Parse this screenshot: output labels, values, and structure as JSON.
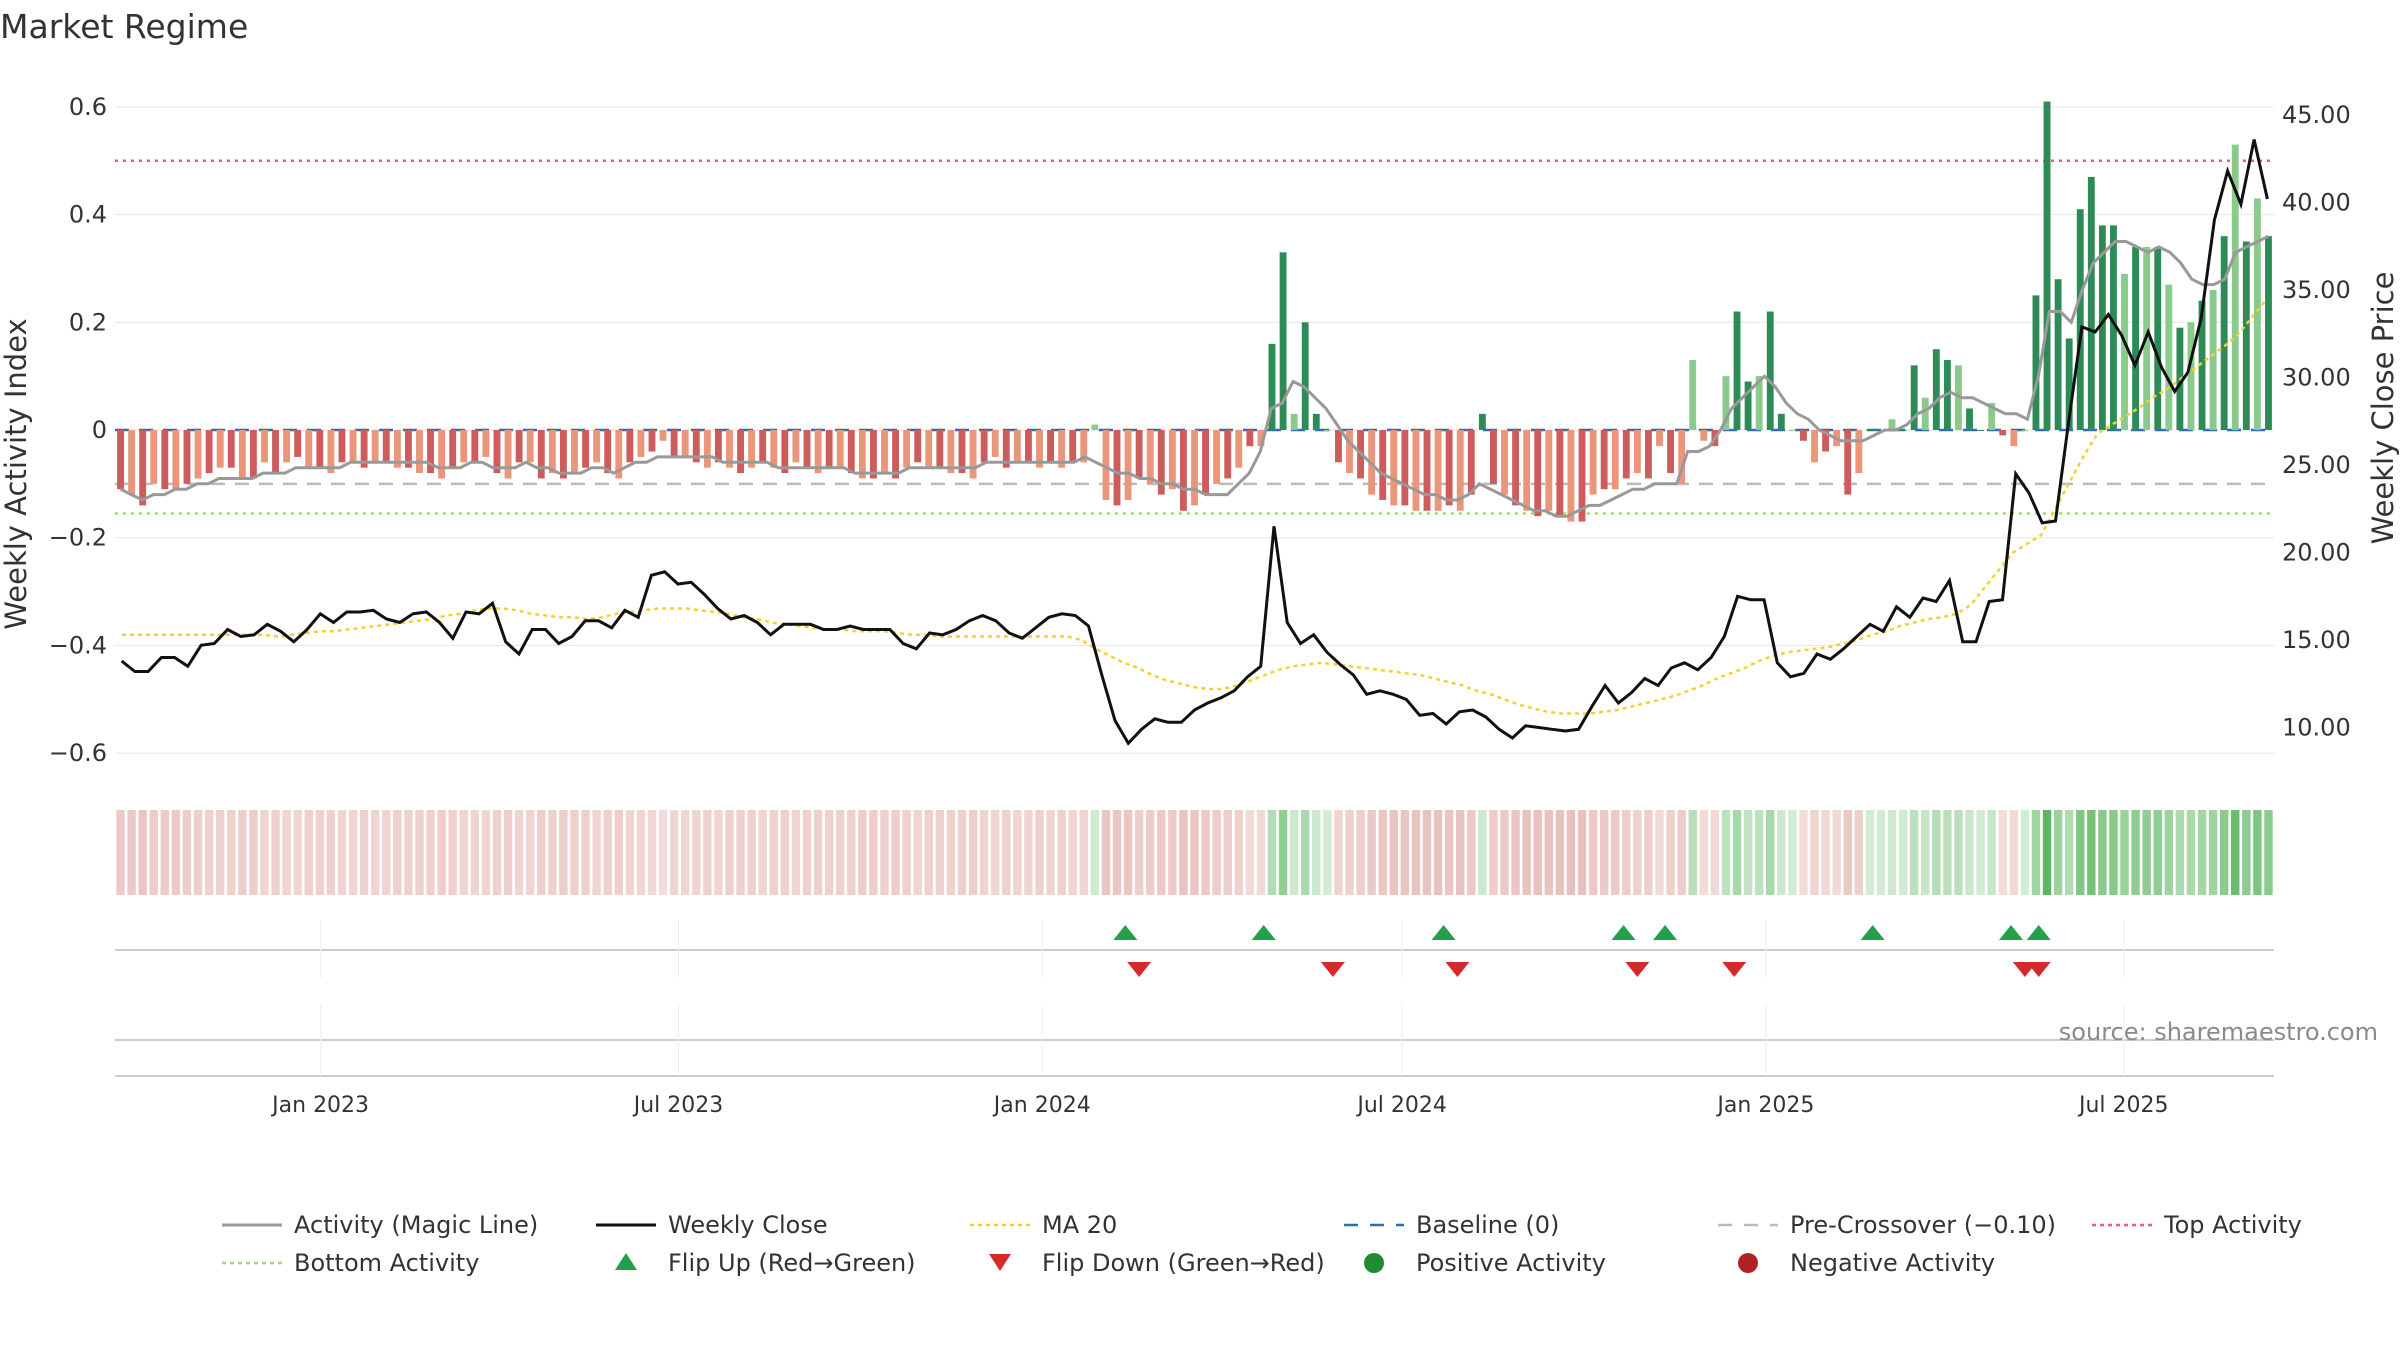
{
  "title": "Market Regime",
  "source_text": "source: sharemaestro.com",
  "colors": {
    "activity_line": "#999999",
    "weekly_close": "#111111",
    "ma20": "#f2d22e",
    "baseline": "#2f6fb0",
    "pre_crossover": "#bbbbbb",
    "top_activity": "#e0607a",
    "bottom_activity": "#9fdb6e",
    "pos_strong": "#2e8b57",
    "pos_weak": "#8cc98c",
    "neg_strong": "#cd5c5c",
    "neg_weak": "#e9967a",
    "flip_up": "#22a04b",
    "flip_down": "#d62a2a",
    "positive_dot": "#1e8c2f",
    "negative_dot": "#b22222"
  },
  "legend": [
    {
      "label": "Activity (Magic Line)",
      "style": "line",
      "color": "#999999"
    },
    {
      "label": "Weekly Close",
      "style": "line",
      "color": "#111111"
    },
    {
      "label": "MA 20",
      "style": "dotted",
      "color": "#f2d22e"
    },
    {
      "label": "Baseline (0)",
      "style": "dashed",
      "color": "#2f6fb0"
    },
    {
      "label": "Pre-Crossover (−0.10)",
      "style": "dashed",
      "color": "#bbbbbb"
    },
    {
      "label": "Top Activity",
      "style": "dotted",
      "color": "#e0607a"
    },
    {
      "label": "Bottom Activity",
      "style": "dotted",
      "color": "#9fdb6e"
    },
    {
      "label": "Flip Up (Red→Green)",
      "style": "triangle-up",
      "color": "#22a04b"
    },
    {
      "label": "Flip Down (Green→Red)",
      "style": "triangle-down",
      "color": "#d62a2a"
    },
    {
      "label": "Positive Activity",
      "style": "dot",
      "color": "#1e8c2f"
    },
    {
      "label": "Negative Activity",
      "style": "dot",
      "color": "#b22222"
    }
  ],
  "chart_data": {
    "type": "bar+line",
    "x_axis": {
      "type": "date",
      "start": "2022-09-19",
      "end": "2025-09-15",
      "tick_labels": [
        "Jan 2023",
        "Jul 2023",
        "Jan 2024",
        "Jul 2024",
        "Jan 2025",
        "Jul 2025"
      ],
      "tick_dates": [
        "2023-01-01",
        "2023-07-01",
        "2024-01-01",
        "2024-07-01",
        "2025-01-01",
        "2025-07-01"
      ]
    },
    "y_left": {
      "label": "Weekly Activity Index",
      "range": [
        -0.65,
        0.65
      ],
      "ticks": [
        0.6,
        0.4,
        0.2,
        0,
        -0.2,
        -0.4,
        -0.6
      ],
      "tick_labels": [
        "0.6",
        "0.4",
        "0.2",
        "0",
        "−0.2",
        "−0.4",
        "−0.6"
      ]
    },
    "y_right": {
      "label": "Weekly Close Price",
      "range": [
        7.0,
        47.0
      ],
      "ticks": [
        45,
        40,
        35,
        30,
        25,
        20,
        15,
        10
      ],
      "tick_labels": [
        "45.00",
        "40.00",
        "35.00",
        "30.00",
        "25.00",
        "20.00",
        "15.00",
        "10.00"
      ]
    },
    "reference_lines": {
      "baseline": 0,
      "pre_crossover": -0.1,
      "top_activity": 0.5,
      "bottom_activity": -0.155
    },
    "weekly_activity": [
      -0.11,
      -0.12,
      -0.14,
      -0.1,
      -0.11,
      -0.11,
      -0.1,
      -0.09,
      -0.08,
      -0.07,
      -0.07,
      -0.09,
      -0.09,
      -0.06,
      -0.08,
      -0.06,
      -0.05,
      -0.07,
      -0.07,
      -0.08,
      -0.06,
      -0.06,
      -0.07,
      -0.06,
      -0.06,
      -0.07,
      -0.07,
      -0.08,
      -0.08,
      -0.09,
      -0.07,
      -0.06,
      -0.06,
      -0.05,
      -0.08,
      -0.09,
      -0.06,
      -0.06,
      -0.09,
      -0.08,
      -0.09,
      -0.08,
      -0.07,
      -0.06,
      -0.08,
      -0.09,
      -0.06,
      -0.05,
      -0.04,
      -0.02,
      -0.05,
      -0.05,
      -0.06,
      -0.07,
      -0.06,
      -0.07,
      -0.08,
      -0.07,
      -0.06,
      -0.07,
      -0.08,
      -0.06,
      -0.07,
      -0.08,
      -0.07,
      -0.07,
      -0.08,
      -0.09,
      -0.09,
      -0.08,
      -0.09,
      -0.07,
      -0.06,
      -0.07,
      -0.07,
      -0.08,
      -0.08,
      -0.09,
      -0.06,
      -0.05,
      -0.07,
      -0.06,
      -0.06,
      -0.07,
      -0.06,
      -0.07,
      -0.06,
      -0.06,
      0.01,
      -0.13,
      -0.14,
      -0.13,
      -0.09,
      -0.1,
      -0.12,
      -0.11,
      -0.15,
      -0.14,
      -0.12,
      -0.1,
      -0.09,
      -0.07,
      -0.03,
      -0.03,
      0.16,
      0.33,
      0.03,
      0.2,
      0.03,
      0.0,
      -0.06,
      -0.08,
      -0.09,
      -0.12,
      -0.13,
      -0.14,
      -0.14,
      -0.15,
      -0.15,
      -0.15,
      -0.14,
      -0.15,
      -0.12,
      0.03,
      -0.1,
      -0.12,
      -0.14,
      -0.15,
      -0.16,
      -0.15,
      -0.16,
      -0.17,
      -0.17,
      -0.12,
      -0.11,
      -0.11,
      -0.09,
      -0.08,
      -0.09,
      -0.03,
      -0.08,
      -0.1,
      0.13,
      -0.02,
      -0.03,
      0.1,
      0.22,
      0.09,
      0.1,
      0.22,
      0.03,
      0.0,
      -0.02,
      -0.06,
      -0.04,
      -0.03,
      -0.12,
      -0.08,
      0.0,
      0.0,
      0.02,
      0.0,
      0.12,
      0.06,
      0.15,
      0.13,
      0.12,
      0.04,
      0.0,
      0.05,
      -0.01,
      -0.03,
      0.0,
      0.25,
      0.61,
      0.28,
      0.17,
      0.41,
      0.47,
      0.38,
      0.38,
      0.29,
      0.34,
      0.34,
      0.34,
      0.27,
      0.19,
      0.2,
      0.24,
      0.26,
      0.36,
      0.53,
      0.35,
      0.43,
      0.36
    ],
    "activity_magic_line": [
      -0.11,
      -0.12,
      -0.13,
      -0.12,
      -0.12,
      -0.11,
      -0.11,
      -0.1,
      -0.1,
      -0.09,
      -0.09,
      -0.09,
      -0.09,
      -0.08,
      -0.08,
      -0.08,
      -0.07,
      -0.07,
      -0.07,
      -0.07,
      -0.07,
      -0.06,
      -0.06,
      -0.06,
      -0.06,
      -0.06,
      -0.06,
      -0.06,
      -0.06,
      -0.07,
      -0.07,
      -0.07,
      -0.06,
      -0.06,
      -0.07,
      -0.07,
      -0.07,
      -0.06,
      -0.07,
      -0.07,
      -0.08,
      -0.08,
      -0.08,
      -0.07,
      -0.07,
      -0.08,
      -0.07,
      -0.06,
      -0.06,
      -0.05,
      -0.05,
      -0.05,
      -0.05,
      -0.05,
      -0.05,
      -0.06,
      -0.06,
      -0.06,
      -0.06,
      -0.06,
      -0.07,
      -0.07,
      -0.07,
      -0.07,
      -0.07,
      -0.07,
      -0.07,
      -0.08,
      -0.08,
      -0.08,
      -0.08,
      -0.08,
      -0.07,
      -0.07,
      -0.07,
      -0.07,
      -0.07,
      -0.07,
      -0.07,
      -0.06,
      -0.06,
      -0.06,
      -0.06,
      -0.06,
      -0.06,
      -0.06,
      -0.06,
      -0.06,
      -0.05,
      -0.06,
      -0.07,
      -0.08,
      -0.08,
      -0.09,
      -0.09,
      -0.1,
      -0.1,
      -0.11,
      -0.11,
      -0.12,
      -0.12,
      -0.12,
      -0.1,
      -0.08,
      -0.04,
      0.04,
      0.05,
      0.09,
      0.08,
      0.06,
      0.04,
      0.01,
      -0.02,
      -0.04,
      -0.06,
      -0.08,
      -0.09,
      -0.1,
      -0.11,
      -0.12,
      -0.12,
      -0.13,
      -0.13,
      -0.12,
      -0.1,
      -0.11,
      -0.12,
      -0.13,
      -0.14,
      -0.15,
      -0.15,
      -0.16,
      -0.16,
      -0.15,
      -0.14,
      -0.14,
      -0.13,
      -0.12,
      -0.11,
      -0.11,
      -0.1,
      -0.1,
      -0.1,
      -0.04,
      -0.04,
      -0.03,
      0.0,
      0.04,
      0.06,
      0.08,
      0.1,
      0.08,
      0.05,
      0.03,
      0.02,
      0.0,
      -0.01,
      -0.02,
      -0.02,
      -0.02,
      -0.01,
      0.0,
      0.0,
      0.01,
      0.03,
      0.04,
      0.06,
      0.07,
      0.06,
      0.06,
      0.05,
      0.04,
      0.03,
      0.03,
      0.02,
      0.1,
      0.22,
      0.22,
      0.2,
      0.26,
      0.31,
      0.33,
      0.35,
      0.35,
      0.34,
      0.33,
      0.34,
      0.33,
      0.31,
      0.28,
      0.27,
      0.27,
      0.28,
      0.33,
      0.34,
      0.35,
      0.36
    ],
    "weekly_close": [
      13.8,
      13.2,
      13.2,
      14.0,
      14.0,
      13.5,
      14.7,
      14.8,
      15.6,
      15.2,
      15.3,
      15.9,
      15.5,
      14.9,
      15.6,
      16.5,
      16.0,
      16.6,
      16.6,
      16.7,
      16.2,
      16.0,
      16.5,
      16.6,
      16.0,
      15.1,
      16.6,
      16.5,
      17.1,
      14.9,
      14.2,
      15.6,
      15.6,
      14.8,
      15.2,
      16.1,
      16.1,
      15.7,
      16.7,
      16.3,
      18.7,
      18.9,
      18.2,
      18.3,
      17.6,
      16.8,
      16.2,
      16.4,
      16.0,
      15.3,
      15.9,
      15.9,
      15.9,
      15.6,
      15.6,
      15.8,
      15.6,
      15.6,
      15.6,
      14.8,
      14.5,
      15.4,
      15.3,
      15.6,
      16.1,
      16.4,
      16.1,
      15.4,
      15.1,
      15.7,
      16.3,
      16.5,
      16.4,
      15.8,
      13.0,
      10.4,
      9.1,
      9.9,
      10.5,
      10.3,
      10.3,
      11.0,
      11.4,
      11.7,
      12.1,
      12.9,
      13.5,
      21.5,
      16.0,
      14.8,
      15.3,
      14.3,
      13.6,
      13.0,
      11.9,
      12.1,
      11.9,
      11.6,
      10.7,
      10.8,
      10.2,
      10.9,
      11.0,
      10.6,
      9.9,
      9.4,
      10.1,
      10.0,
      9.9,
      9.8,
      9.9,
      11.2,
      12.4,
      11.4,
      12.0,
      12.8,
      12.4,
      13.4,
      13.7,
      13.3,
      14.0,
      15.2,
      17.5,
      17.3,
      17.3,
      13.7,
      12.9,
      13.1,
      14.2,
      13.9,
      14.5,
      15.2,
      15.9,
      15.5,
      16.9,
      16.3,
      17.4,
      17.2,
      18.4,
      14.9,
      14.9,
      17.2,
      17.3,
      24.5,
      23.4,
      21.7,
      21.8,
      27.5,
      32.9,
      32.6,
      33.6,
      32.4,
      30.7,
      32.6,
      30.6,
      29.2,
      30.3,
      33.4,
      39.0,
      41.8,
      39.9,
      43.6,
      40.2
    ],
    "ma20": [
      15.3,
      15.3,
      15.3,
      15.3,
      15.3,
      15.3,
      15.3,
      15.3,
      15.3,
      15.3,
      15.3,
      15.2,
      15.3,
      15.4,
      15.5,
      15.5,
      15.6,
      15.7,
      15.8,
      15.9,
      16.0,
      16.1,
      16.2,
      16.4,
      16.5,
      16.7,
      16.8,
      16.8,
      16.7,
      16.5,
      16.4,
      16.3,
      16.3,
      16.2,
      16.3,
      16.5,
      16.6,
      16.7,
      16.8,
      16.8,
      16.8,
      16.7,
      16.6,
      16.5,
      16.3,
      16.2,
      16.0,
      15.9,
      15.8,
      15.7,
      15.6,
      15.6,
      15.5,
      15.5,
      15.5,
      15.4,
      15.3,
      15.3,
      15.2,
      15.2,
      15.2,
      15.2,
      15.2,
      15.2,
      15.2,
      15.2,
      15.2,
      15.2,
      15.0,
      14.5,
      14.1,
      13.7,
      13.4,
      13.0,
      12.7,
      12.5,
      12.3,
      12.2,
      12.2,
      12.4,
      12.7,
      13.0,
      13.3,
      13.5,
      13.6,
      13.7,
      13.6,
      13.5,
      13.4,
      13.3,
      13.2,
      13.1,
      13.0,
      12.8,
      12.6,
      12.4,
      12.1,
      11.9,
      11.6,
      11.3,
      11.1,
      10.9,
      10.8,
      10.8,
      10.8,
      10.9,
      11.0,
      11.2,
      11.4,
      11.6,
      11.8,
      12.1,
      12.4,
      12.8,
      13.1,
      13.4,
      13.8,
      14.1,
      14.3,
      14.4,
      14.5,
      14.6,
      14.8,
      15.0,
      15.3,
      15.5,
      15.8,
      16.0,
      16.2,
      16.3,
      16.5,
      17.0,
      18.0,
      19.0,
      20.0,
      20.5,
      21.0,
      22.5,
      24.0,
      25.5,
      26.8,
      27.3,
      27.8,
      28.3,
      28.9,
      29.4,
      30.0,
      30.6,
      31.2,
      31.8,
      32.5,
      33.5,
      34.5
    ],
    "regime_strip_shade": [
      1,
      1,
      1,
      1,
      1,
      1,
      1,
      1,
      1,
      1,
      1,
      1,
      1,
      1,
      1,
      1,
      1,
      1,
      1,
      1,
      1,
      1,
      1,
      1,
      1,
      1,
      1,
      1,
      1,
      1,
      1,
      1,
      1,
      1,
      1,
      1,
      1,
      1,
      1,
      1,
      1,
      1,
      1,
      1,
      1,
      1,
      1,
      1,
      1,
      1,
      1,
      1,
      1,
      1,
      1,
      1,
      1,
      1,
      1,
      1,
      1,
      1,
      1,
      1,
      1,
      1,
      1,
      1,
      1,
      1,
      1,
      1,
      1,
      1,
      1,
      1,
      1,
      1,
      1,
      1,
      1,
      1,
      1,
      1,
      1,
      1,
      1,
      1,
      1,
      1,
      1,
      1,
      1,
      1,
      1,
      1,
      1,
      1,
      1,
      1,
      1,
      1,
      1,
      1,
      1,
      1,
      1,
      1,
      1,
      1,
      1,
      1,
      1,
      1,
      1,
      1,
      1,
      1,
      1,
      1,
      1,
      1,
      1,
      1,
      1,
      1,
      1,
      1,
      1,
      1,
      1,
      1,
      1,
      1,
      1,
      1,
      1,
      1,
      1,
      1,
      1,
      1,
      1,
      1,
      1,
      1,
      1,
      1,
      1,
      1,
      1,
      1,
      1,
      1,
      1,
      1,
      1,
      1,
      1,
      1,
      1,
      1,
      1,
      1,
      1,
      1,
      1,
      1,
      1,
      1,
      1,
      1,
      1,
      1,
      1,
      1,
      1,
      1,
      1,
      1,
      1,
      1,
      1,
      1,
      1,
      1,
      1,
      1,
      1,
      1,
      1,
      1,
      1,
      1,
      1,
      1,
      1,
      1,
      1,
      1,
      1
    ],
    "flip_up_dates": [
      "2024-02-12",
      "2024-04-22",
      "2024-07-22",
      "2024-10-21",
      "2024-11-11",
      "2025-02-24",
      "2025-05-05",
      "2025-05-19"
    ],
    "flip_down_dates": [
      "2024-02-19",
      "2024-05-27",
      "2024-07-29",
      "2024-10-28",
      "2024-12-16",
      "2025-05-12",
      "2025-05-19"
    ]
  }
}
